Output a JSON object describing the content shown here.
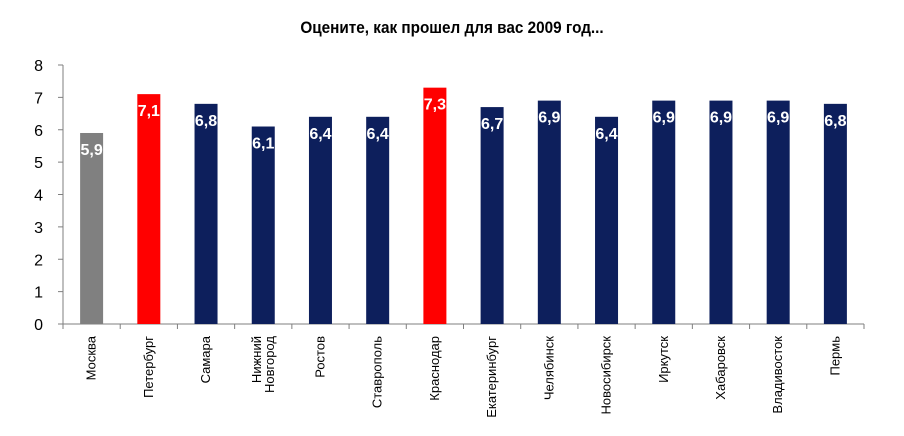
{
  "chart_data": {
    "type": "bar",
    "title": "Оцените, как прошел для вас 2009 год...",
    "categories": [
      [
        "Москва"
      ],
      [
        "Петербург"
      ],
      [
        "Самара"
      ],
      [
        "Нижний",
        "Новгород"
      ],
      [
        "Ростов"
      ],
      [
        "Ставрополь"
      ],
      [
        "Краснодар"
      ],
      [
        "Екатеринбург"
      ],
      [
        "Челябинск"
      ],
      [
        "Новосибирск"
      ],
      [
        "Иркутск"
      ],
      [
        "Хабаровск"
      ],
      [
        "Владивосток"
      ],
      [
        "Пермь"
      ]
    ],
    "values": [
      5.9,
      7.1,
      6.8,
      6.1,
      6.4,
      6.4,
      7.3,
      6.7,
      6.9,
      6.4,
      6.9,
      6.9,
      6.9,
      6.8
    ],
    "data_labels": [
      "5,9",
      "7,1",
      "6,8",
      "6,1",
      "6,4",
      "6,4",
      "7,3",
      "6,7",
      "6,9",
      "6,4",
      "6,9",
      "6,9",
      "6,9",
      "6,8"
    ],
    "bar_colors": [
      "#808080",
      "#ff0000",
      "#0d1f5c",
      "#0d1f5c",
      "#0d1f5c",
      "#0d1f5c",
      "#ff0000",
      "#0d1f5c",
      "#0d1f5c",
      "#0d1f5c",
      "#0d1f5c",
      "#0d1f5c",
      "#0d1f5c",
      "#0d1f5c"
    ],
    "ylim": [
      0,
      8
    ],
    "yticks": [
      "0",
      "1",
      "2",
      "3",
      "4",
      "5",
      "6",
      "7",
      "8"
    ],
    "grid": false,
    "legend": "none"
  }
}
